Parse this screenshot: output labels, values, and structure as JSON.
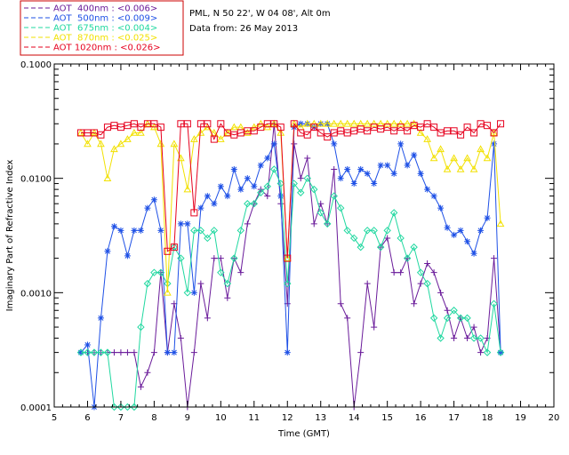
{
  "chart_data": {
    "type": "line",
    "info_lines": [
      "PML, N 50 22', W 04 08', Alt 0m",
      "Data from: 26 May 2013"
    ],
    "xlabel": "Time (GMT)",
    "ylabel": "Imaginary Part of Refractive Index",
    "xlim": [
      5,
      20
    ],
    "ylim": [
      0.0001,
      0.1
    ],
    "y_scale": "log",
    "grid": false,
    "legend_position": "top-left, outside plot",
    "x_ticks": [
      5,
      6,
      7,
      8,
      9,
      10,
      11,
      12,
      13,
      14,
      15,
      16,
      17,
      18,
      19,
      20
    ],
    "x_tick_labels": [
      "5",
      "6",
      "7",
      "8",
      "9",
      "10",
      "11",
      "12",
      "13",
      "14",
      "15",
      "16",
      "17",
      "18",
      "19",
      "20"
    ],
    "y_ticks": [
      0.0001,
      0.001,
      0.01,
      0.1
    ],
    "y_tick_labels": [
      "0.0001",
      "0.0010",
      "0.0100",
      "0.1000"
    ],
    "series": [
      {
        "name": "AOT  400nm : <0.006>",
        "color": "#6a1b9a",
        "marker": "plus",
        "x": [
          5.8,
          6.0,
          6.2,
          6.4,
          6.6,
          6.8,
          7.0,
          7.2,
          7.4,
          7.6,
          7.8,
          8.0,
          8.2,
          8.4,
          8.6,
          8.8,
          9.0,
          9.2,
          9.4,
          9.6,
          9.8,
          10.0,
          10.2,
          10.4,
          10.6,
          10.8,
          11.0,
          11.2,
          11.4,
          11.6,
          11.8,
          12.0,
          12.2,
          12.4,
          12.6,
          12.8,
          13.0,
          13.2,
          13.4,
          13.6,
          13.8,
          14.0,
          14.2,
          14.4,
          14.6,
          14.8,
          15.0,
          15.2,
          15.4,
          15.6,
          15.8,
          16.0,
          16.2,
          16.4,
          16.6,
          16.8,
          17.0,
          17.2,
          17.4,
          17.6,
          17.8,
          18.0,
          18.2,
          18.4
        ],
        "y": [
          0.0003,
          0.0003,
          0.0003,
          0.0003,
          0.0003,
          0.0003,
          0.0003,
          0.0003,
          0.0003,
          0.00015,
          0.0002,
          0.0003,
          0.0015,
          0.0003,
          0.0008,
          0.0004,
          0.0001,
          0.0003,
          0.0012,
          0.0006,
          0.002,
          0.002,
          0.0009,
          0.002,
          0.0015,
          0.004,
          0.006,
          0.008,
          0.007,
          0.03,
          0.006,
          0.0008,
          0.02,
          0.01,
          0.015,
          0.004,
          0.006,
          0.004,
          0.012,
          0.0008,
          0.0006,
          8e-05,
          0.0003,
          0.0012,
          0.0005,
          0.0025,
          0.003,
          0.0015,
          0.0015,
          0.002,
          0.0008,
          0.0012,
          0.0018,
          0.0015,
          0.001,
          0.0007,
          0.0004,
          0.0006,
          0.0004,
          0.0005,
          0.0003,
          0.0004,
          0.002,
          0.0003
        ]
      },
      {
        "name": "AOT  500nm : <0.009>",
        "color": "#1e50e6",
        "marker": "star",
        "x": [
          5.8,
          6.0,
          6.2,
          6.4,
          6.6,
          6.8,
          7.0,
          7.2,
          7.4,
          7.6,
          7.8,
          8.0,
          8.2,
          8.4,
          8.6,
          8.8,
          9.0,
          9.2,
          9.4,
          9.6,
          9.8,
          10.0,
          10.2,
          10.4,
          10.6,
          10.8,
          11.0,
          11.2,
          11.4,
          11.6,
          11.8,
          12.0,
          12.2,
          12.4,
          12.6,
          12.8,
          13.0,
          13.2,
          13.4,
          13.6,
          13.8,
          14.0,
          14.2,
          14.4,
          14.6,
          14.8,
          15.0,
          15.2,
          15.4,
          15.6,
          15.8,
          16.0,
          16.2,
          16.4,
          16.6,
          16.8,
          17.0,
          17.2,
          17.4,
          17.6,
          17.8,
          18.0,
          18.2,
          18.4
        ],
        "y": [
          0.0003,
          0.00035,
          0.0001,
          0.0006,
          0.0023,
          0.0038,
          0.0035,
          0.0021,
          0.0035,
          0.0035,
          0.0055,
          0.0065,
          0.0035,
          0.0003,
          0.0003,
          0.004,
          0.004,
          0.001,
          0.0055,
          0.007,
          0.006,
          0.0085,
          0.007,
          0.012,
          0.008,
          0.01,
          0.0085,
          0.013,
          0.015,
          0.02,
          0.007,
          0.0003,
          0.028,
          0.03,
          0.03,
          0.028,
          0.03,
          0.03,
          0.02,
          0.01,
          0.012,
          0.009,
          0.012,
          0.011,
          0.009,
          0.013,
          0.013,
          0.011,
          0.02,
          0.013,
          0.016,
          0.011,
          0.008,
          0.007,
          0.0055,
          0.0037,
          0.0032,
          0.0035,
          0.0028,
          0.0022,
          0.0035,
          0.0045,
          0.02,
          0.0003
        ]
      },
      {
        "name": "AOT  675nm : <0.004>",
        "color": "#20d8a0",
        "marker": "diamond",
        "x": [
          5.8,
          6.0,
          6.2,
          6.4,
          6.6,
          6.8,
          7.0,
          7.2,
          7.4,
          7.6,
          7.8,
          8.0,
          8.2,
          8.4,
          8.6,
          8.8,
          9.0,
          9.2,
          9.4,
          9.6,
          9.8,
          10.0,
          10.2,
          10.4,
          10.6,
          10.8,
          11.0,
          11.2,
          11.4,
          11.6,
          11.8,
          12.0,
          12.2,
          12.4,
          12.6,
          12.8,
          13.0,
          13.2,
          13.4,
          13.6,
          13.8,
          14.0,
          14.2,
          14.4,
          14.6,
          14.8,
          15.0,
          15.2,
          15.4,
          15.6,
          15.8,
          16.0,
          16.2,
          16.4,
          16.6,
          16.8,
          17.0,
          17.2,
          17.4,
          17.6,
          17.8,
          18.0,
          18.2,
          18.4
        ],
        "y": [
          0.0003,
          0.0003,
          0.0003,
          0.0003,
          0.0003,
          0.0001,
          0.0001,
          0.0001,
          0.0001,
          0.0005,
          0.0012,
          0.0015,
          0.0015,
          0.0012,
          0.0025,
          0.002,
          0.001,
          0.0035,
          0.0035,
          0.003,
          0.0035,
          0.0015,
          0.0012,
          0.002,
          0.0035,
          0.006,
          0.006,
          0.0075,
          0.0085,
          0.012,
          0.009,
          0.0012,
          0.009,
          0.0075,
          0.01,
          0.008,
          0.005,
          0.004,
          0.007,
          0.0055,
          0.0035,
          0.003,
          0.0025,
          0.0035,
          0.0035,
          0.0025,
          0.0035,
          0.005,
          0.003,
          0.002,
          0.0025,
          0.0015,
          0.0012,
          0.0006,
          0.0004,
          0.0006,
          0.0007,
          0.0006,
          0.0006,
          0.0004,
          0.0004,
          0.0003,
          0.0008,
          0.0003
        ]
      },
      {
        "name": "AOT  870nm : <0.025>",
        "color": "#f2e100",
        "marker": "triangle",
        "x": [
          5.8,
          6.0,
          6.2,
          6.4,
          6.6,
          6.8,
          7.0,
          7.2,
          7.4,
          7.6,
          7.8,
          8.0,
          8.2,
          8.4,
          8.6,
          8.8,
          9.0,
          9.2,
          9.4,
          9.6,
          9.8,
          10.0,
          10.2,
          10.4,
          10.6,
          10.8,
          11.0,
          11.2,
          11.4,
          11.6,
          11.8,
          12.0,
          12.2,
          12.4,
          12.6,
          12.8,
          13.0,
          13.2,
          13.4,
          13.6,
          13.8,
          14.0,
          14.2,
          14.4,
          14.6,
          14.8,
          15.0,
          15.2,
          15.4,
          15.6,
          15.8,
          16.0,
          16.2,
          16.4,
          16.6,
          16.8,
          17.0,
          17.2,
          17.4,
          17.6,
          17.8,
          18.0,
          18.2,
          18.4
        ],
        "y": [
          0.025,
          0.02,
          0.025,
          0.02,
          0.01,
          0.018,
          0.02,
          0.022,
          0.025,
          0.025,
          0.03,
          0.028,
          0.02,
          0.001,
          0.02,
          0.015,
          0.008,
          0.022,
          0.025,
          0.028,
          0.025,
          0.022,
          0.025,
          0.028,
          0.028,
          0.025,
          0.028,
          0.03,
          0.028,
          0.03,
          0.025,
          0.002,
          0.03,
          0.028,
          0.03,
          0.03,
          0.03,
          0.03,
          0.03,
          0.03,
          0.03,
          0.03,
          0.03,
          0.03,
          0.03,
          0.03,
          0.03,
          0.03,
          0.03,
          0.03,
          0.03,
          0.025,
          0.022,
          0.015,
          0.018,
          0.012,
          0.015,
          0.012,
          0.015,
          0.012,
          0.018,
          0.015,
          0.025,
          0.004
        ]
      },
      {
        "name": "AOT 1020nm : <0.026>",
        "color": "#e6001e",
        "marker": "square",
        "x": [
          5.8,
          6.0,
          6.2,
          6.4,
          6.6,
          6.8,
          7.0,
          7.2,
          7.4,
          7.6,
          7.8,
          8.0,
          8.2,
          8.4,
          8.6,
          8.8,
          9.0,
          9.2,
          9.4,
          9.6,
          9.8,
          10.0,
          10.2,
          10.4,
          10.6,
          10.8,
          11.0,
          11.2,
          11.4,
          11.6,
          11.8,
          12.0,
          12.2,
          12.4,
          12.6,
          12.8,
          13.0,
          13.2,
          13.4,
          13.6,
          13.8,
          14.0,
          14.2,
          14.4,
          14.6,
          14.8,
          15.0,
          15.2,
          15.4,
          15.6,
          15.8,
          16.0,
          16.2,
          16.4,
          16.6,
          16.8,
          17.0,
          17.2,
          17.4,
          17.6,
          17.8,
          18.0,
          18.2,
          18.4
        ],
        "y": [
          0.025,
          0.025,
          0.025,
          0.024,
          0.028,
          0.029,
          0.028,
          0.029,
          0.03,
          0.028,
          0.03,
          0.03,
          0.028,
          0.0023,
          0.0025,
          0.03,
          0.03,
          0.005,
          0.03,
          0.03,
          0.022,
          0.03,
          0.025,
          0.024,
          0.025,
          0.026,
          0.026,
          0.028,
          0.03,
          0.03,
          0.028,
          0.002,
          0.03,
          0.025,
          0.024,
          0.028,
          0.025,
          0.023,
          0.025,
          0.026,
          0.025,
          0.026,
          0.027,
          0.026,
          0.028,
          0.027,
          0.028,
          0.026,
          0.028,
          0.026,
          0.029,
          0.028,
          0.03,
          0.028,
          0.025,
          0.026,
          0.026,
          0.024,
          0.028,
          0.025,
          0.03,
          0.029,
          0.025,
          0.03
        ]
      }
    ]
  }
}
